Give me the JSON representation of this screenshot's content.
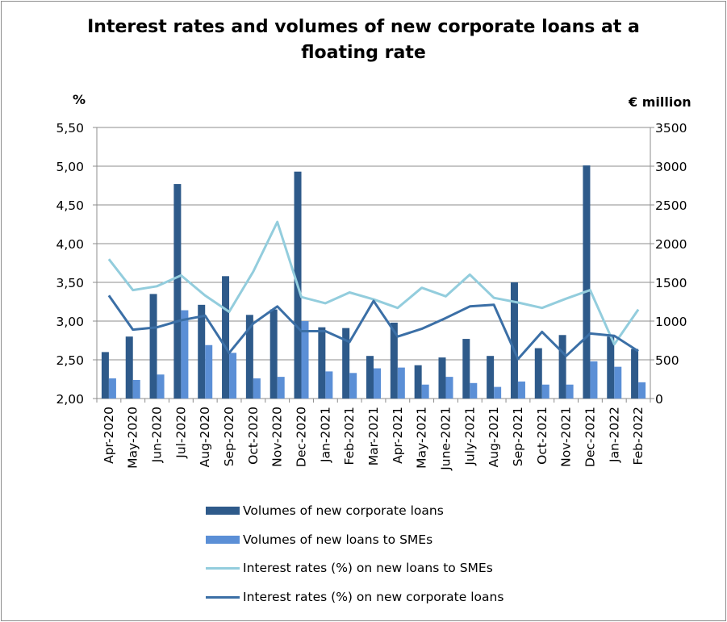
{
  "chart_data": {
    "type": "bar+line",
    "title_lines": [
      "Interest rates and volumes of new corporate loans at a",
      "floating rate"
    ],
    "ylabel_left": "%",
    "ylabel_right": "€ million",
    "ylim_left": [
      2.0,
      5.5
    ],
    "ylim_right": [
      0,
      3500
    ],
    "yticks_left": [
      "2,00",
      "2,50",
      "3,00",
      "3,50",
      "4,00",
      "4,50",
      "5,00",
      "5,50"
    ],
    "yticks_right": [
      "0",
      "500",
      "1000",
      "1500",
      "2000",
      "2500",
      "3000",
      "3500"
    ],
    "categories": [
      "Apr-2020",
      "May-2020",
      "Jun-2020",
      "Jul-2020",
      "Aug-2020",
      "Sep-2020",
      "Oct-2020",
      "Nov-2020",
      "Dec-2020",
      "Jan-2021",
      "Feb-2021",
      "Mar-2021",
      "Apr-2021",
      "May-2021",
      "June-2021",
      "July-2021",
      "Aug-2021",
      "Sep-2021",
      "Oct-2021",
      "Nov-2021",
      "Dec-2021",
      "Jan-2022",
      "Feb-2022"
    ],
    "grid": "horizontal",
    "legend_position": "bottom",
    "series": [
      {
        "name": "Volumes of new corporate loans",
        "kind": "bar",
        "axis": "right",
        "color": "#2e5a8a",
        "values": [
          600,
          800,
          1350,
          2770,
          1210,
          1580,
          1080,
          1150,
          2930,
          920,
          910,
          550,
          980,
          430,
          530,
          770,
          550,
          1500,
          650,
          820,
          3010,
          800,
          640
        ]
      },
      {
        "name": "Volumes of new loans to SMEs",
        "kind": "bar",
        "axis": "right",
        "color": "#5b8fd6",
        "values": [
          260,
          240,
          310,
          1140,
          690,
          590,
          260,
          280,
          1000,
          350,
          330,
          390,
          400,
          180,
          280,
          200,
          150,
          220,
          180,
          180,
          480,
          410,
          210
        ]
      },
      {
        "name": "Interest rates (%) on new loans to SMEs",
        "kind": "line",
        "axis": "left",
        "color": "#93cddd",
        "values": [
          3.8,
          3.4,
          3.45,
          3.59,
          3.33,
          3.12,
          3.64,
          4.28,
          3.31,
          3.23,
          3.37,
          3.28,
          3.17,
          3.43,
          3.32,
          3.6,
          3.3,
          3.24,
          3.17,
          3.29,
          3.4,
          2.7,
          3.15
        ]
      },
      {
        "name": "Interest rates (%) on new corporate loans",
        "kind": "line",
        "axis": "left",
        "color": "#3b6fa6",
        "values": [
          3.33,
          2.89,
          2.92,
          3.01,
          3.07,
          2.59,
          2.97,
          3.19,
          2.87,
          2.87,
          2.73,
          3.26,
          2.8,
          2.9,
          3.04,
          3.19,
          3.21,
          2.51,
          2.86,
          2.55,
          2.84,
          2.81,
          2.61
        ]
      }
    ]
  }
}
